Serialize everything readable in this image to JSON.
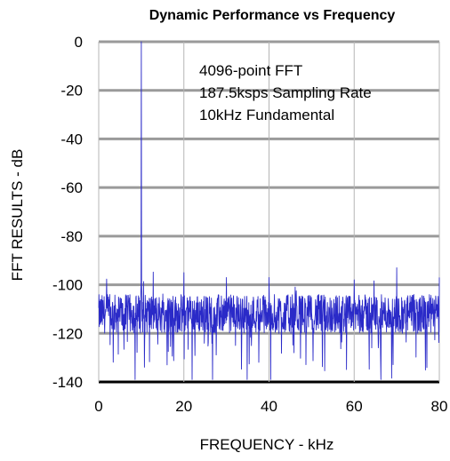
{
  "chart_data": {
    "type": "line",
    "title": "Dynamic Performance vs Frequency",
    "xlabel": "FREQUENCY - kHz",
    "ylabel": "FFT RESULTS - dB",
    "xlim": [
      0,
      80
    ],
    "ylim": [
      -140,
      0
    ],
    "xticks": [
      "0",
      "20",
      "40",
      "60",
      "80"
    ],
    "yticks": [
      "0",
      "-20",
      "-40",
      "-60",
      "-80",
      "-100",
      "-120",
      "-140"
    ],
    "grid": true,
    "annotations": [
      "4096-point FFT",
      "187.5ksps Sampling Rate",
      "10kHz Fundamental"
    ],
    "series": [
      {
        "color": "#2a2ac8",
        "fundamental": {
          "x": 10,
          "y": 0
        },
        "noise_floor_db": -112,
        "spurs": [
          {
            "x": 20,
            "y": -95
          },
          {
            "x": 30,
            "y": -97
          },
          {
            "x": 40,
            "y": -97
          },
          {
            "x": 60,
            "y": -98
          },
          {
            "x": 70,
            "y": -93
          },
          {
            "x": 80,
            "y": -97
          }
        ]
      }
    ]
  }
}
